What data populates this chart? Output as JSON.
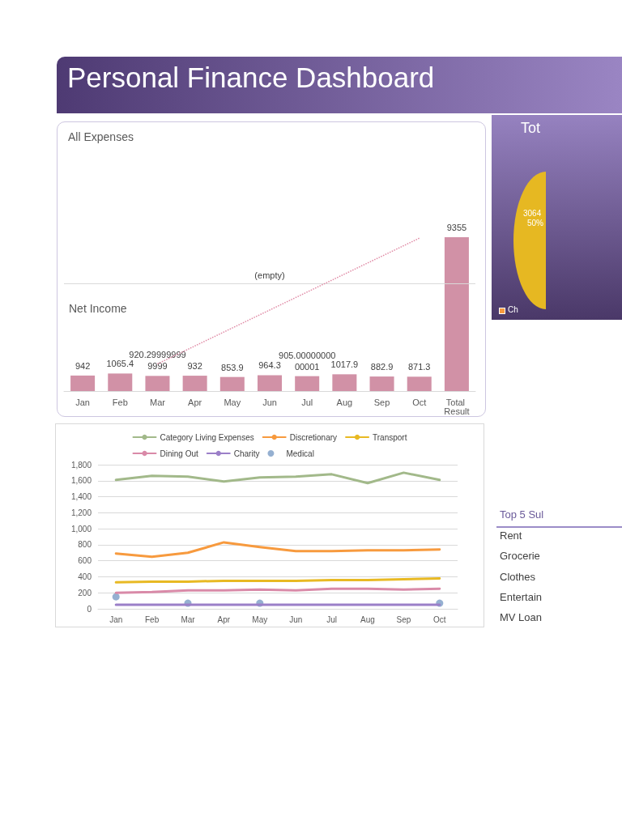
{
  "chart_data": [
    {
      "type": "other",
      "title": "Personal Finance Dashboard"
    },
    {
      "type": "bar",
      "title": "Net Income",
      "annotations": [
        "All Expenses"
      ],
      "categories": [
        "Jan",
        "Feb",
        "Mar",
        "Apr",
        "May",
        "Jun",
        "Jul",
        "Aug",
        "Sep",
        "Oct",
        "Total Result"
      ],
      "series": [
        {
          "type": "bar",
          "color": "#d191a6",
          "values": [
            942,
            1065.4,
            920.299999999999,
            932,
            853.9,
            964.3,
            905.0000000000001,
            1017.9,
            882.9,
            871.3,
            9355
          ],
          "value_labels": [
            "942",
            "1065.4",
            "920.299999999999",
            "932",
            "853.9",
            "964.3",
            "905.0000000000001",
            "1017.9",
            "882.9",
            "871.3",
            "9355"
          ]
        },
        {
          "type": "line",
          "color": "#e08aa5",
          "x": [
            "Mar",
            "Oct"
          ],
          "values": [
            1650,
            9300
          ],
          "line_style": "dotted"
        }
      ],
      "ref_lines": [
        {
          "axis": "y",
          "value": 6530,
          "label": "(empty)",
          "color": "#d9d9d9"
        }
      ],
      "tick_labels": "x",
      "grid": false,
      "legend": false
    },
    {
      "type": "other",
      "title": "Tot",
      "annotations": [
        "3064",
        "50%",
        "Ch"
      ]
    },
    {
      "type": "line",
      "categories": [
        "Jan",
        "Feb",
        "Mar",
        "Apr",
        "May",
        "Jun",
        "Jul",
        "Aug",
        "Sep",
        "Oct"
      ],
      "series": [
        {
          "name": "Category Living Expenses",
          "color": "#a2b98a",
          "values": [
            1610,
            1660,
            1650,
            1590,
            1640,
            1650,
            1680,
            1570,
            1700,
            1610
          ]
        },
        {
          "name": "Discretionary",
          "color": "#f79a3e",
          "values": [
            690,
            650,
            700,
            830,
            770,
            720,
            720,
            730,
            730,
            740
          ]
        },
        {
          "name": "Transport",
          "color": "#e8b923",
          "values": [
            330,
            340,
            340,
            350,
            350,
            350,
            360,
            360,
            370,
            380
          ]
        },
        {
          "name": "Dining Out",
          "color": "#d98aa8",
          "values": [
            200,
            210,
            230,
            230,
            240,
            230,
            250,
            250,
            240,
            250
          ]
        },
        {
          "name": "Charity",
          "color": "#9b7fc8",
          "values": [
            50,
            50,
            50,
            50,
            50,
            50,
            50,
            50,
            50,
            50
          ]
        },
        {
          "name": "Medical",
          "type": "scatter",
          "color": "#7a9cc6",
          "marker": "circle",
          "values": [
            150,
            null,
            70,
            null,
            70,
            null,
            null,
            null,
            null,
            70
          ]
        }
      ],
      "ylim": [
        0,
        1800
      ],
      "yticks": [
        0,
        200,
        400,
        600,
        800,
        {
          "value": 1000,
          "label": "1,000"
        },
        {
          "value": 1200,
          "label": "1,200"
        },
        {
          "value": 1400,
          "label": "1,400"
        },
        {
          "value": 1600,
          "label": "1,600"
        },
        {
          "value": 1800,
          "label": "1,800"
        }
      ],
      "grid": "y",
      "legend": "top",
      "marker": "none",
      "line_style": "solid"
    },
    {
      "type": "other",
      "title": "Top 5 Sul",
      "annotations": [
        "Rent",
        "Grocerie",
        "Clothes",
        "Entertain",
        "MV Loan"
      ]
    }
  ]
}
